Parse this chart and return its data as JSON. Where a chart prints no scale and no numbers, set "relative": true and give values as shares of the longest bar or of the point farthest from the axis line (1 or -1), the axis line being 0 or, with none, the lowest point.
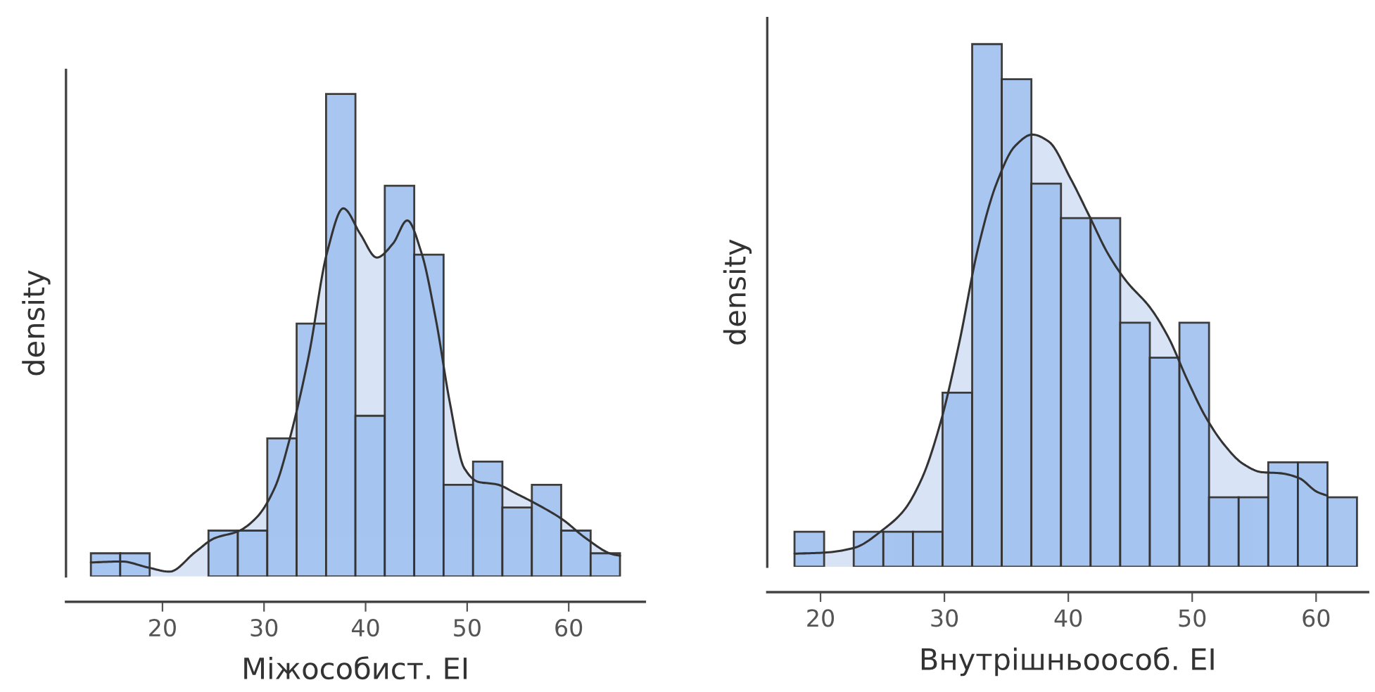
{
  "chart_data": [
    {
      "type": "histogram",
      "relative": true,
      "xlabel": "Міжособист. EI",
      "ylabel": "density",
      "xlim": [
        10.5,
        67.5
      ],
      "xticks": [
        20,
        30,
        40,
        50,
        60
      ],
      "color": "#a4c3f0",
      "bins": [
        12.95,
        15.84,
        18.74,
        21.63,
        24.53,
        27.42,
        30.32,
        33.21,
        36.11,
        39.0,
        41.89,
        44.79,
        47.68,
        50.58,
        53.47,
        56.37,
        59.26,
        62.16,
        65.05
      ],
      "values": [
        0.048,
        0.048,
        0,
        0,
        0.095,
        0.095,
        0.286,
        0.524,
        1,
        0.333,
        0.81,
        0.667,
        0.19,
        0.238,
        0.143,
        0.19,
        0.095,
        0.048
      ],
      "series": [
        {
          "type": "area",
          "color": "#d8e3f6",
          "x": [
            12.95,
            15.97,
            18.5,
            20.7,
            23.2,
            25.1,
            27.5,
            29.3,
            31.1,
            32.5,
            34.4,
            36.2,
            37.8,
            39.5,
            41.1,
            42.7,
            44.1,
            45.5,
            46.9,
            48.3,
            49.7,
            51.1,
            52.9,
            54.8,
            57.1,
            59.4,
            61.7,
            64.3,
            65.05
          ],
          "values": [
            0.029,
            0.031,
            0.019,
            0.01,
            0.05,
            0.079,
            0.094,
            0.123,
            0.186,
            0.283,
            0.457,
            0.671,
            0.763,
            0.709,
            0.661,
            0.69,
            0.738,
            0.671,
            0.535,
            0.36,
            0.225,
            0.196,
            0.191,
            0.172,
            0.147,
            0.118,
            0.079,
            0.046,
            0.043
          ]
        }
      ]
    },
    {
      "type": "histogram",
      "relative": true,
      "xlabel": "Внутрішньоособ. EI",
      "ylabel": "density",
      "xlim": [
        15.7,
        64.2
      ],
      "xticks": [
        20,
        30,
        40,
        50,
        60
      ],
      "color": "#a4c3f0",
      "bins": [
        17.9,
        20.29,
        22.68,
        25.07,
        27.46,
        29.85,
        32.24,
        34.63,
        37.02,
        39.41,
        41.8,
        44.19,
        46.58,
        48.97,
        51.36,
        53.75,
        56.14,
        58.53,
        60.92,
        63.3
      ],
      "values": [
        0.067,
        0,
        0.067,
        0.067,
        0.067,
        0.333,
        1,
        0.933,
        0.733,
        0.667,
        0.667,
        0.467,
        0.4,
        0.467,
        0.133,
        0.133,
        0.2,
        0.2,
        0.133
      ],
      "series": [
        {
          "type": "area",
          "color": "#d8e3f6",
          "x": [
            17.9,
            20.3,
            22.7,
            25.1,
            26.7,
            28.2,
            29.7,
            31.2,
            32.7,
            34.2,
            35.7,
            37.1,
            38.4,
            40.2,
            41.7,
            43.2,
            44.7,
            46.6,
            48.1,
            49.6,
            51.1,
            52.6,
            54.1,
            55.6,
            57.1,
            58.6,
            60.1,
            60.9
          ],
          "values": [
            0.025,
            0.027,
            0.036,
            0.072,
            0.107,
            0.17,
            0.277,
            0.429,
            0.608,
            0.733,
            0.805,
            0.827,
            0.814,
            0.742,
            0.671,
            0.599,
            0.546,
            0.496,
            0.438,
            0.358,
            0.286,
            0.233,
            0.197,
            0.181,
            0.179,
            0.17,
            0.143,
            0.136
          ]
        }
      ]
    }
  ]
}
